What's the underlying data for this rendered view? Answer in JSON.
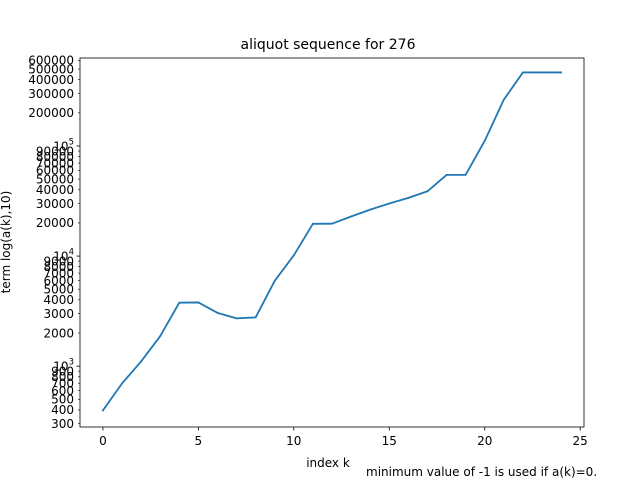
{
  "chart_data": {
    "type": "line",
    "title": "aliquot sequence for 276",
    "xlabel": "index k",
    "ylabel": "term log(a(k),10)",
    "footnote": "minimum value of -1 is used if a(k)=0.",
    "y_scale": "log",
    "xlim": [
      -1.2,
      25.2
    ],
    "ylim": [
      280,
      630000
    ],
    "x_ticks": [
      0,
      5,
      10,
      15,
      20,
      25
    ],
    "y_ticks_major": [
      {
        "value": 1000,
        "base": "10",
        "exp": "3"
      },
      {
        "value": 10000,
        "base": "10",
        "exp": "4"
      },
      {
        "value": 100000,
        "base": "10",
        "exp": "5"
      }
    ],
    "y_ticks_minor": [
      {
        "value": 300,
        "label": "300"
      },
      {
        "value": 400,
        "label": "400"
      },
      {
        "value": 500,
        "label": "500"
      },
      {
        "value": 600,
        "label": "600"
      },
      {
        "value": 700,
        "label": "700"
      },
      {
        "value": 800,
        "label": "800"
      },
      {
        "value": 900,
        "label": "900"
      },
      {
        "value": 2000,
        "label": "2000"
      },
      {
        "value": 3000,
        "label": "3000"
      },
      {
        "value": 4000,
        "label": "4000"
      },
      {
        "value": 5000,
        "label": "5000"
      },
      {
        "value": 6000,
        "label": "6000"
      },
      {
        "value": 7000,
        "label": "7000"
      },
      {
        "value": 8000,
        "label": "8000"
      },
      {
        "value": 9000,
        "label": "9000"
      },
      {
        "value": 20000,
        "label": "20000"
      },
      {
        "value": 30000,
        "label": "30000"
      },
      {
        "value": 40000,
        "label": "40000"
      },
      {
        "value": 50000,
        "label": "50000"
      },
      {
        "value": 60000,
        "label": "60000"
      },
      {
        "value": 70000,
        "label": "70000"
      },
      {
        "value": 80000,
        "label": "80000"
      },
      {
        "value": 90000,
        "label": "90000"
      },
      {
        "value": 200000,
        "label": "200000"
      },
      {
        "value": 300000,
        "label": "300000"
      },
      {
        "value": 400000,
        "label": "400000"
      },
      {
        "value": 500000,
        "label": "500000"
      },
      {
        "value": 600000,
        "label": "600000"
      }
    ],
    "x": [
      0,
      1,
      2,
      3,
      4,
      5,
      6,
      7,
      8,
      9,
      10,
      11,
      12,
      13,
      14,
      15,
      16,
      17,
      18,
      19,
      20,
      21,
      22,
      23,
      24
    ],
    "series": [
      {
        "color": "#1f77b4",
        "values": [
          396,
          696,
          1104,
          1872,
          3770,
          3790,
          3050,
          2716,
          2772,
          5964,
          10164,
          19628,
          19684,
          22876,
          26404,
          30044,
          33796,
          38780,
          54628,
          54684,
          111300,
          263676,
          465668,
          465724,
          465668
        ]
      }
    ],
    "grid": false,
    "legend": "none"
  }
}
